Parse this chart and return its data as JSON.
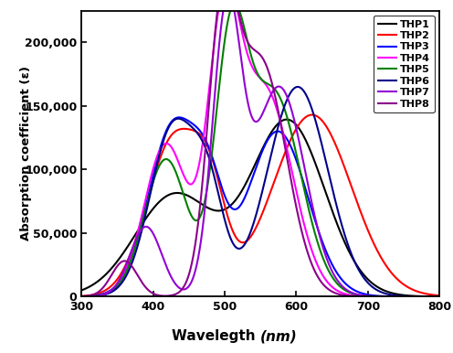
{
  "compounds": [
    "THP1",
    "THP2",
    "THP3",
    "THP4",
    "THP5",
    "THP6",
    "THP7",
    "THP8"
  ],
  "colors": [
    "#000000",
    "#ff0000",
    "#0000ff",
    "#ff00ff",
    "#008000",
    "#00008b",
    "#9400d3",
    "#8b008b"
  ],
  "peaks": [
    [
      [
        430,
        80000,
        55
      ],
      [
        588,
        138000,
        52
      ]
    ],
    [
      [
        430,
        125000,
        38
      ],
      [
        480,
        55000,
        22
      ],
      [
        622,
        143000,
        55
      ]
    ],
    [
      [
        428,
        134000,
        34
      ],
      [
        478,
        62000,
        22
      ],
      [
        574,
        130000,
        42
      ]
    ],
    [
      [
        418,
        120000,
        30
      ],
      [
        498,
        190000,
        22
      ],
      [
        556,
        162000,
        38
      ]
    ],
    [
      [
        418,
        108000,
        30
      ],
      [
        508,
        178000,
        22
      ],
      [
        568,
        160000,
        38
      ]
    ],
    [
      [
        428,
        133000,
        32
      ],
      [
        478,
        68000,
        22
      ],
      [
        602,
        165000,
        42
      ]
    ],
    [
      [
        390,
        55000,
        22
      ],
      [
        503,
        216000,
        20
      ],
      [
        576,
        165000,
        36
      ]
    ],
    [
      [
        360,
        28000,
        18
      ],
      [
        496,
        188000,
        20
      ],
      [
        550,
        185000,
        36
      ]
    ]
  ],
  "xlim": [
    300,
    800
  ],
  "ylim": [
    0,
    225000
  ],
  "yticks": [
    0,
    50000,
    100000,
    150000,
    200000
  ],
  "xticks": [
    300,
    400,
    500,
    600,
    700,
    800
  ],
  "linewidth": 1.5,
  "legend_fontsize": 8,
  "tick_fontsize": 9,
  "ylabel_text": "Absorption coefficient (ε)",
  "xlabel_main": "Wavelegth ",
  "xlabel_italic": "(nm)"
}
